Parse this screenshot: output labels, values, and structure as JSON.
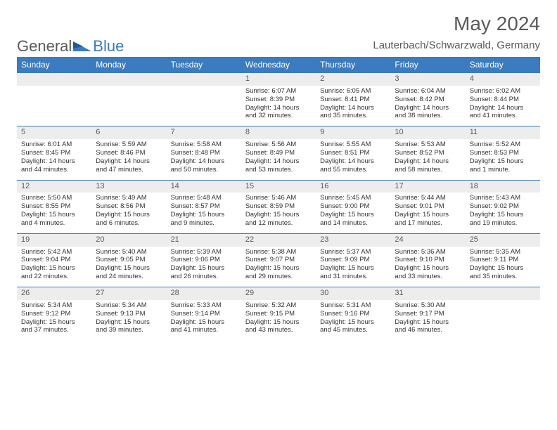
{
  "brand": {
    "general": "General",
    "blue": "Blue"
  },
  "title": "May 2024",
  "location": "Lauterbach/Schwarzwald, Germany",
  "colors": {
    "header_bg": "#3b7bbf",
    "header_fg": "#ffffff",
    "daynum_bg": "#ededed",
    "row_border": "#3b7bbf",
    "text": "#333333",
    "muted": "#5a5a5a",
    "page_bg": "#ffffff"
  },
  "typography": {
    "title_fontsize": 28,
    "location_fontsize": 15,
    "weekday_fontsize": 12,
    "daynum_fontsize": 11,
    "cell_fontsize": 9.5
  },
  "weekdays": [
    "Sunday",
    "Monday",
    "Tuesday",
    "Wednesday",
    "Thursday",
    "Friday",
    "Saturday"
  ],
  "weeks": [
    {
      "nums": [
        "",
        "",
        "",
        "1",
        "2",
        "3",
        "4"
      ],
      "cells": [
        "",
        "",
        "",
        "Sunrise: 6:07 AM\nSunset: 8:39 PM\nDaylight: 14 hours and 32 minutes.",
        "Sunrise: 6:05 AM\nSunset: 8:41 PM\nDaylight: 14 hours and 35 minutes.",
        "Sunrise: 6:04 AM\nSunset: 8:42 PM\nDaylight: 14 hours and 38 minutes.",
        "Sunrise: 6:02 AM\nSunset: 8:44 PM\nDaylight: 14 hours and 41 minutes."
      ]
    },
    {
      "nums": [
        "5",
        "6",
        "7",
        "8",
        "9",
        "10",
        "11"
      ],
      "cells": [
        "Sunrise: 6:01 AM\nSunset: 8:45 PM\nDaylight: 14 hours and 44 minutes.",
        "Sunrise: 5:59 AM\nSunset: 8:46 PM\nDaylight: 14 hours and 47 minutes.",
        "Sunrise: 5:58 AM\nSunset: 8:48 PM\nDaylight: 14 hours and 50 minutes.",
        "Sunrise: 5:56 AM\nSunset: 8:49 PM\nDaylight: 14 hours and 53 minutes.",
        "Sunrise: 5:55 AM\nSunset: 8:51 PM\nDaylight: 14 hours and 55 minutes.",
        "Sunrise: 5:53 AM\nSunset: 8:52 PM\nDaylight: 14 hours and 58 minutes.",
        "Sunrise: 5:52 AM\nSunset: 8:53 PM\nDaylight: 15 hours and 1 minute."
      ]
    },
    {
      "nums": [
        "12",
        "13",
        "14",
        "15",
        "16",
        "17",
        "18"
      ],
      "cells": [
        "Sunrise: 5:50 AM\nSunset: 8:55 PM\nDaylight: 15 hours and 4 minutes.",
        "Sunrise: 5:49 AM\nSunset: 8:56 PM\nDaylight: 15 hours and 6 minutes.",
        "Sunrise: 5:48 AM\nSunset: 8:57 PM\nDaylight: 15 hours and 9 minutes.",
        "Sunrise: 5:46 AM\nSunset: 8:59 PM\nDaylight: 15 hours and 12 minutes.",
        "Sunrise: 5:45 AM\nSunset: 9:00 PM\nDaylight: 15 hours and 14 minutes.",
        "Sunrise: 5:44 AM\nSunset: 9:01 PM\nDaylight: 15 hours and 17 minutes.",
        "Sunrise: 5:43 AM\nSunset: 9:02 PM\nDaylight: 15 hours and 19 minutes."
      ]
    },
    {
      "nums": [
        "19",
        "20",
        "21",
        "22",
        "23",
        "24",
        "25"
      ],
      "cells": [
        "Sunrise: 5:42 AM\nSunset: 9:04 PM\nDaylight: 15 hours and 22 minutes.",
        "Sunrise: 5:40 AM\nSunset: 9:05 PM\nDaylight: 15 hours and 24 minutes.",
        "Sunrise: 5:39 AM\nSunset: 9:06 PM\nDaylight: 15 hours and 26 minutes.",
        "Sunrise: 5:38 AM\nSunset: 9:07 PM\nDaylight: 15 hours and 29 minutes.",
        "Sunrise: 5:37 AM\nSunset: 9:09 PM\nDaylight: 15 hours and 31 minutes.",
        "Sunrise: 5:36 AM\nSunset: 9:10 PM\nDaylight: 15 hours and 33 minutes.",
        "Sunrise: 5:35 AM\nSunset: 9:11 PM\nDaylight: 15 hours and 35 minutes."
      ]
    },
    {
      "nums": [
        "26",
        "27",
        "28",
        "29",
        "30",
        "31",
        ""
      ],
      "cells": [
        "Sunrise: 5:34 AM\nSunset: 9:12 PM\nDaylight: 15 hours and 37 minutes.",
        "Sunrise: 5:34 AM\nSunset: 9:13 PM\nDaylight: 15 hours and 39 minutes.",
        "Sunrise: 5:33 AM\nSunset: 9:14 PM\nDaylight: 15 hours and 41 minutes.",
        "Sunrise: 5:32 AM\nSunset: 9:15 PM\nDaylight: 15 hours and 43 minutes.",
        "Sunrise: 5:31 AM\nSunset: 9:16 PM\nDaylight: 15 hours and 45 minutes.",
        "Sunrise: 5:30 AM\nSunset: 9:17 PM\nDaylight: 15 hours and 46 minutes.",
        ""
      ]
    }
  ]
}
